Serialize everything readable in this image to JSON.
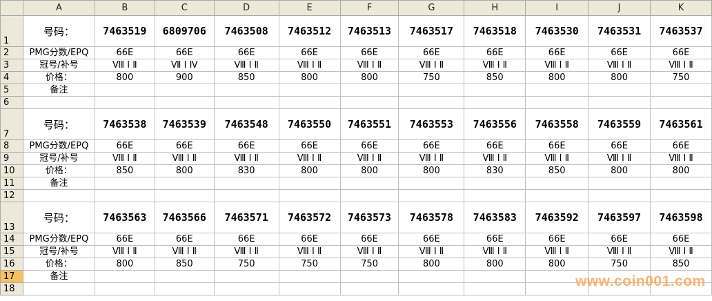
{
  "columns": [
    "A",
    "B",
    "C",
    "D",
    "E",
    "F",
    "G",
    "H",
    "I",
    "J",
    "K"
  ],
  "active_row": 17,
  "labels": {
    "number": "号码：",
    "grade": "PMG分数/EPQ",
    "prefix": "冠号/补号",
    "price": "价格：",
    "note": "备注"
  },
  "blocks": [
    {
      "start_row": 1,
      "numbers": [
        "7463519",
        "6809706",
        "7463508",
        "7463512",
        "7463513",
        "7463517",
        "7463518",
        "7463530",
        "7463531",
        "7463537"
      ],
      "grades": [
        "66E",
        "66E",
        "66E",
        "66E",
        "66E",
        "66E",
        "66E",
        "66E",
        "66E",
        "66E"
      ],
      "prefixes": [
        "Ⅷ Ⅰ Ⅱ",
        "Ⅶ Ⅰ Ⅳ",
        "Ⅷ Ⅰ Ⅱ",
        "Ⅷ Ⅰ Ⅱ",
        "Ⅷ Ⅰ Ⅱ",
        "Ⅷ Ⅰ Ⅱ",
        "Ⅷ Ⅰ Ⅱ",
        "Ⅷ Ⅰ Ⅱ",
        "Ⅷ Ⅰ Ⅱ",
        "Ⅷ Ⅰ Ⅱ"
      ],
      "prices": [
        "800",
        "900",
        "850",
        "800",
        "800",
        "750",
        "850",
        "800",
        "800",
        "750"
      ]
    },
    {
      "start_row": 7,
      "numbers": [
        "7463538",
        "7463539",
        "7463548",
        "7463550",
        "7463551",
        "7463553",
        "7463556",
        "7463558",
        "7463559",
        "7463561"
      ],
      "grades": [
        "66E",
        "66E",
        "66E",
        "66E",
        "66E",
        "66E",
        "66E",
        "66E",
        "66E",
        "66E"
      ],
      "prefixes": [
        "Ⅷ Ⅰ Ⅱ",
        "Ⅷ Ⅰ Ⅱ",
        "Ⅷ Ⅰ Ⅱ",
        "Ⅷ Ⅰ Ⅱ",
        "Ⅷ Ⅰ Ⅱ",
        "Ⅷ Ⅰ Ⅱ",
        "Ⅷ Ⅰ Ⅱ",
        "Ⅷ Ⅰ Ⅱ",
        "Ⅷ Ⅰ Ⅱ",
        "Ⅷ Ⅰ Ⅱ"
      ],
      "prices": [
        "850",
        "800",
        "830",
        "800",
        "800",
        "800",
        "830",
        "850",
        "800",
        "800"
      ]
    },
    {
      "start_row": 13,
      "numbers": [
        "7463563",
        "7463566",
        "7463571",
        "7463572",
        "7463573",
        "7463578",
        "7463583",
        "7463592",
        "7463597",
        "7463598"
      ],
      "grades": [
        "66E",
        "66E",
        "66E",
        "66E",
        "66E",
        "66E",
        "66E",
        "66E",
        "66E",
        "66E"
      ],
      "prefixes": [
        "Ⅷ Ⅰ Ⅱ",
        "Ⅷ Ⅰ Ⅱ",
        "Ⅷ Ⅰ Ⅱ",
        "Ⅷ Ⅰ Ⅱ",
        "Ⅷ Ⅰ Ⅱ",
        "Ⅷ Ⅰ Ⅱ",
        "Ⅷ Ⅰ Ⅱ",
        "Ⅷ Ⅰ Ⅱ",
        "Ⅷ Ⅰ Ⅱ",
        "Ⅷ Ⅰ Ⅱ"
      ],
      "prices": [
        "800",
        "850",
        "750",
        "750",
        "750",
        "800",
        "800",
        "800",
        "750",
        "850"
      ]
    }
  ],
  "last_row": 18,
  "watermark": "www.coin001.com"
}
